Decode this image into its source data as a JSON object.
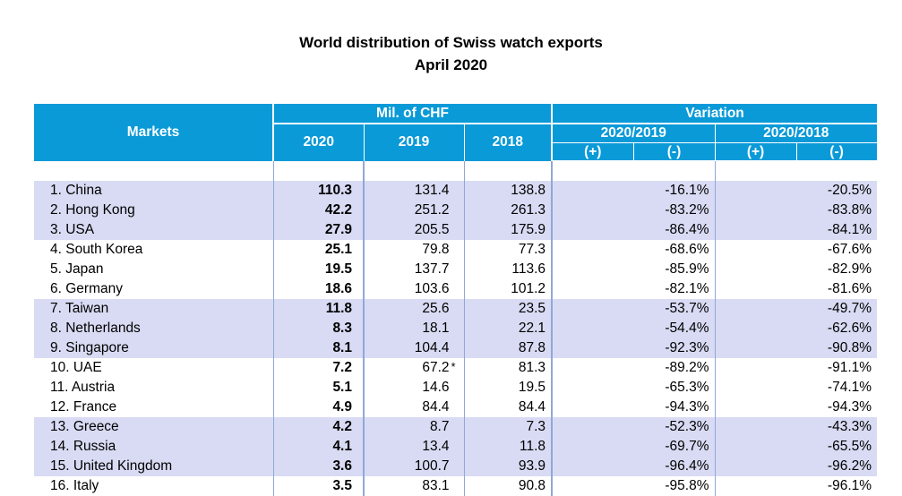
{
  "title": "World distribution of Swiss watch exports",
  "subtitle": "April 2020",
  "header": {
    "markets": "Markets",
    "mil_chf": "Mil. of CHF",
    "variation": "Variation",
    "y2020": "2020",
    "y2019": "2019",
    "y2018": "2018",
    "var1": "2020/2019",
    "var2": "2020/2018",
    "plus": "(+)",
    "minus": "(-)"
  },
  "colors": {
    "header_bg": "#0a9ad8",
    "band_bg": "#d8dbf3",
    "border": "#8fa8d8"
  },
  "chart_data": {
    "type": "table",
    "title": "World distribution of Swiss watch exports",
    "subtitle": "April 2020",
    "columns": [
      "Markets",
      "2020",
      "2019",
      "2018",
      "2020/2019 (-)",
      "2020/2018 (-)"
    ],
    "rows": [
      {
        "market": "1. China",
        "y2020": "110.3",
        "y2019": "131.4",
        "y2018": "138.8",
        "var1": "-16.1%",
        "var2": "-20.5%",
        "band": "shaded"
      },
      {
        "market": "2. Hong Kong",
        "y2020": "42.2",
        "y2019": "251.2",
        "y2018": "261.3",
        "var1": "-83.2%",
        "var2": "-83.8%",
        "band": "shaded"
      },
      {
        "market": "3. USA",
        "y2020": "27.9",
        "y2019": "205.5",
        "y2018": "175.9",
        "var1": "-86.4%",
        "var2": "-84.1%",
        "band": "shaded"
      },
      {
        "market": "4. South Korea",
        "y2020": "25.1",
        "y2019": "79.8",
        "y2018": "77.3",
        "var1": "-68.6%",
        "var2": "-67.6%",
        "band": "white"
      },
      {
        "market": "5. Japan",
        "y2020": "19.5",
        "y2019": "137.7",
        "y2018": "113.6",
        "var1": "-85.9%",
        "var2": "-82.9%",
        "band": "white"
      },
      {
        "market": "6. Germany",
        "y2020": "18.6",
        "y2019": "103.6",
        "y2018": "101.2",
        "var1": "-82.1%",
        "var2": "-81.6%",
        "band": "white"
      },
      {
        "market": "7. Taiwan",
        "y2020": "11.8",
        "y2019": "25.6",
        "y2018": "23.5",
        "var1": "-53.7%",
        "var2": "-49.7%",
        "band": "shaded"
      },
      {
        "market": "8. Netherlands",
        "y2020": "8.3",
        "y2019": "18.1",
        "y2018": "22.1",
        "var1": "-54.4%",
        "var2": "-62.6%",
        "band": "shaded"
      },
      {
        "market": "9. Singapore",
        "y2020": "8.1",
        "y2019": "104.4",
        "y2018": "87.8",
        "var1": "-92.3%",
        "var2": "-90.8%",
        "band": "shaded"
      },
      {
        "market": "10. UAE",
        "y2020": "7.2",
        "y2019": "67.2",
        "y2019_note": "*",
        "y2018": "81.3",
        "var1": "-89.2%",
        "var2": "-91.1%",
        "band": "white"
      },
      {
        "market": "11. Austria",
        "y2020": "5.1",
        "y2019": "14.6",
        "y2018": "19.5",
        "var1": "-65.3%",
        "var2": "-74.1%",
        "band": "white"
      },
      {
        "market": "12. France",
        "y2020": "4.9",
        "y2019": "84.4",
        "y2018": "84.4",
        "var1": "-94.3%",
        "var2": "-94.3%",
        "band": "white"
      },
      {
        "market": "13. Greece",
        "y2020": "4.2",
        "y2019": "8.7",
        "y2018": "7.3",
        "var1": "-52.3%",
        "var2": "-43.3%",
        "band": "shaded"
      },
      {
        "market": "14. Russia",
        "y2020": "4.1",
        "y2019": "13.4",
        "y2018": "11.8",
        "var1": "-69.7%",
        "var2": "-65.5%",
        "band": "shaded"
      },
      {
        "market": "15. United Kingdom",
        "y2020": "3.6",
        "y2019": "100.7",
        "y2018": "93.9",
        "var1": "-96.4%",
        "var2": "-96.2%",
        "band": "shaded"
      },
      {
        "market": "16. Italy",
        "y2020": "3.5",
        "y2019": "83.1",
        "y2018": "90.8",
        "var1": "-95.8%",
        "var2": "-96.1%",
        "band": "white"
      }
    ]
  }
}
